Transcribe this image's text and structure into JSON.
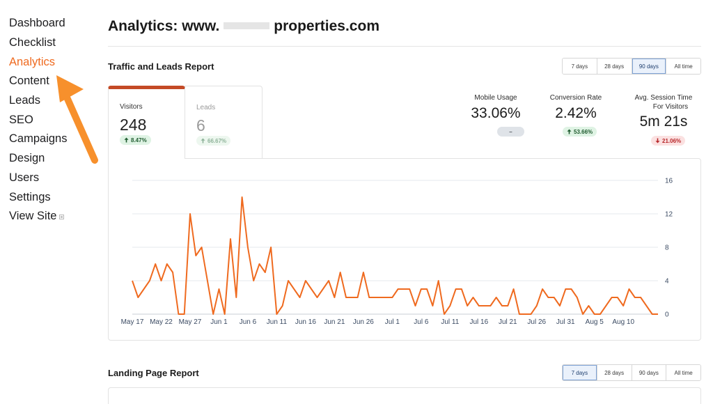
{
  "sidebar": {
    "items": [
      {
        "label": "Dashboard"
      },
      {
        "label": "Checklist"
      },
      {
        "label": "Analytics",
        "active": true
      },
      {
        "label": "Content"
      },
      {
        "label": "Leads"
      },
      {
        "label": "SEO"
      },
      {
        "label": "Campaigns"
      },
      {
        "label": "Design"
      },
      {
        "label": "Users"
      },
      {
        "label": "Settings"
      },
      {
        "label": "View Site",
        "external": true
      }
    ]
  },
  "header": {
    "title_label": "Analytics:",
    "domain_prefix": "www.",
    "domain_suffix": "properties.com"
  },
  "traffic_report": {
    "title": "Traffic and Leads Report",
    "ranges": [
      "7 days",
      "28 days",
      "90 days",
      "All time"
    ],
    "active_range": "90 days",
    "tabs": {
      "visitors": {
        "label": "Visitors",
        "value": "248",
        "change": "8.47%",
        "direction": "up"
      },
      "leads": {
        "label": "Leads",
        "value": "6",
        "change": "66.67%",
        "direction": "up"
      }
    },
    "metrics": {
      "mobile_usage": {
        "label": "Mobile Usage",
        "value": "33.06%",
        "change": "–",
        "direction": "neutral"
      },
      "conversion_rate": {
        "label": "Conversion Rate",
        "value": "2.42%",
        "change": "53.66%",
        "direction": "up"
      },
      "avg_session": {
        "label_line1": "Avg. Session Time",
        "label_line2": "For Visitors",
        "value": "5m 21s",
        "change": "21.06%",
        "direction": "down"
      }
    }
  },
  "chart_data": {
    "type": "line",
    "series": [
      {
        "values": [
          4,
          2,
          3,
          4,
          6,
          4,
          6,
          5,
          0,
          0,
          12,
          7,
          8,
          4,
          0,
          3,
          0,
          9,
          2,
          14,
          8,
          4,
          6,
          5,
          8,
          0,
          1,
          4,
          3,
          2,
          4,
          3,
          2,
          3,
          4,
          2,
          5,
          2,
          2,
          2,
          5,
          2,
          2,
          2,
          2,
          2,
          3,
          3,
          3,
          1,
          3,
          3,
          1,
          4,
          0,
          1,
          3,
          3,
          1,
          2,
          1,
          1,
          1,
          2,
          1,
          1,
          3,
          0,
          0,
          0,
          1,
          3,
          2,
          2,
          1,
          3,
          3,
          2,
          0,
          1,
          0,
          0,
          1,
          2,
          2,
          1,
          3,
          2,
          2,
          1,
          0,
          0
        ]
      }
    ],
    "x_ticks": [
      "May 17",
      "May 22",
      "May 27",
      "Jun 1",
      "Jun 6",
      "Jun 11",
      "Jun 16",
      "Jun 21",
      "Jun 26",
      "Jul 1",
      "Jul 6",
      "Jul 11",
      "Jul 16",
      "Jul 21",
      "Jul 26",
      "Jul 31",
      "Aug 5",
      "Aug 10"
    ],
    "y_ticks": [
      0,
      4,
      8,
      12,
      16
    ],
    "ylim": [
      0,
      16
    ],
    "grid": true,
    "line_color": "#ef6a1f"
  },
  "landing_report": {
    "title": "Landing Page Report",
    "ranges": [
      "7 days",
      "28 days",
      "90 days",
      "All time"
    ],
    "active_range": "7 days"
  },
  "colors": {
    "accent": "#ef6a1f",
    "tab_top": "#c44a26",
    "arrow": "#f7902c"
  }
}
